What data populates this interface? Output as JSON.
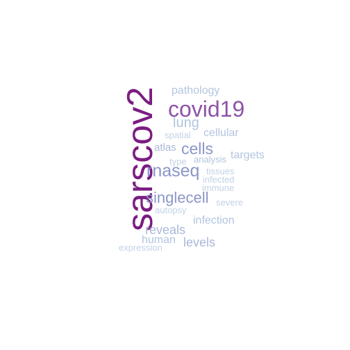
{
  "words": [
    {
      "text": "sarscov2",
      "color": "#7b1d82",
      "rotated": true
    },
    {
      "text": "covid19",
      "color": "#8e53a6"
    },
    {
      "text": "pathology",
      "color": "#b2c5de"
    },
    {
      "text": "lung",
      "color": "#b2c5de"
    },
    {
      "text": "spatial",
      "color": "#c2d2e6"
    },
    {
      "text": "cellular",
      "color": "#b2c5de"
    },
    {
      "text": "atlas",
      "color": "#aab8d8"
    },
    {
      "text": "cells",
      "color": "#8c96c6"
    },
    {
      "text": "targets",
      "color": "#b2c5de"
    },
    {
      "text": "type",
      "color": "#c2d2e6"
    },
    {
      "text": "analysis",
      "color": "#b2c5de"
    },
    {
      "text": "rnaseq",
      "color": "#8c96c6"
    },
    {
      "text": "tissues",
      "color": "#c2d2e6"
    },
    {
      "text": "infected",
      "color": "#c2d2e6"
    },
    {
      "text": "immune",
      "color": "#c2d2e6"
    },
    {
      "text": "singlecell",
      "color": "#8c96c6"
    },
    {
      "text": "severe",
      "color": "#c2d2e6"
    },
    {
      "text": "autopsy",
      "color": "#c2d2e6"
    },
    {
      "text": "infection",
      "color": "#b2c5de"
    },
    {
      "text": "reveals",
      "color": "#aab8d8"
    },
    {
      "text": "human",
      "color": "#b2c5de"
    },
    {
      "text": "levels",
      "color": "#aab8d8"
    },
    {
      "text": "expression",
      "color": "#c2d2e6"
    }
  ]
}
